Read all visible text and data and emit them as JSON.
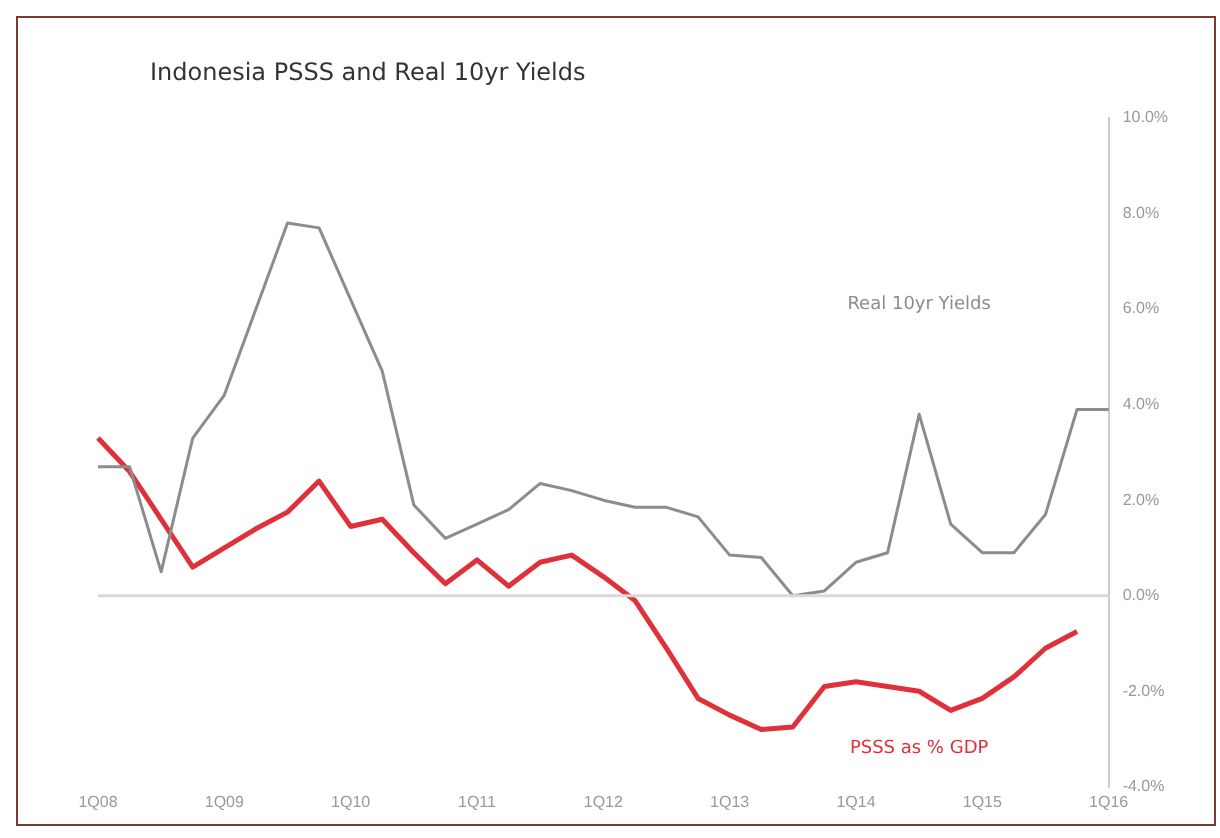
{
  "chart_data": {
    "type": "line",
    "title": "Indonesia PSSS and Real 10yr Yields",
    "categories": [
      "1Q08",
      null,
      null,
      null,
      "1Q09",
      null,
      null,
      null,
      "1Q10",
      null,
      null,
      null,
      "1Q11",
      null,
      null,
      null,
      "1Q12",
      null,
      null,
      null,
      "1Q13",
      null,
      null,
      null,
      "1Q14",
      null,
      null,
      null,
      "1Q15",
      null,
      null,
      null,
      "1Q16"
    ],
    "series": [
      {
        "name": "Real 10yr Yields",
        "color": "#8c8c8c",
        "values": [
          2.7,
          2.7,
          0.5,
          3.3,
          4.2,
          6.0,
          7.8,
          7.7,
          6.2,
          4.7,
          1.9,
          1.2,
          1.5,
          1.8,
          2.35,
          2.2,
          2.0,
          1.85,
          1.85,
          1.65,
          0.85,
          0.8,
          0,
          0.1,
          0.7,
          0.9,
          3.8,
          1.5,
          0.9,
          0.9,
          1.7,
          3.9,
          3.9
        ]
      },
      {
        "name": "PSSS as % GDP",
        "color": "#e0303a",
        "values": [
          3.3,
          2.6,
          1.6,
          0.6,
          1.0,
          1.4,
          1.75,
          2.4,
          1.45,
          1.6,
          0.9,
          0.25,
          0.75,
          0.2,
          0.7,
          0.85,
          0.4,
          -0.1,
          -1.1,
          -2.15,
          -2.5,
          -2.8,
          -2.75,
          -1.9,
          -1.8,
          -1.9,
          -2.0,
          -2.4,
          -2.15,
          -1.7,
          -1.1,
          -0.75,
          null
        ]
      }
    ],
    "ylim": [
      -4,
      10
    ],
    "yticks": [
      {
        "value": 10,
        "label": "10.0%"
      },
      {
        "value": 8,
        "label": "8.0%"
      },
      {
        "value": 6,
        "label": "6.0%"
      },
      {
        "value": 4,
        "label": "4.0%"
      },
      {
        "value": 2,
        "label": "2.0%"
      },
      {
        "value": 0,
        "label": "0.0%"
      },
      {
        "value": -2,
        "label": "-2.0%"
      },
      {
        "value": -4,
        "label": "-4.0%"
      }
    ],
    "ref_lines": [
      {
        "axis": "y",
        "value": 0,
        "color": "#d9d9d9"
      }
    ],
    "grid": false,
    "legend": false,
    "marker": "none",
    "line_style": "solid"
  }
}
